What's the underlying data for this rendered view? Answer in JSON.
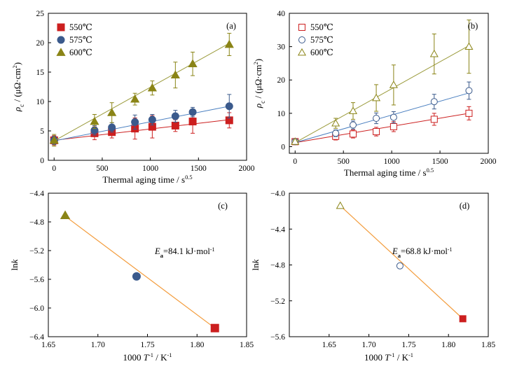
{
  "colors": {
    "c550": "#cc1f1f",
    "c575": "#3b5a8c",
    "c600": "#8a8416",
    "fit575": "#4a7fc0",
    "fit600": "#9a9a3a",
    "arrhenius": "#f39c3c"
  },
  "chart_data": [
    {
      "type": "scatter",
      "panel": "(a)",
      "ylabel_main": "ρ",
      "ylabel_sub": "c",
      "ylabel_unit": " / (μΩ·cm",
      "ylabel_close": ")",
      "xlabel_main": "Thermal aging time / s",
      "xlabel_sup": "0.5",
      "xlim": [
        -60,
        2000
      ],
      "ylim": [
        0,
        25
      ],
      "xticks": [
        0,
        500,
        1000,
        1500,
        2000
      ],
      "yticks": [
        0,
        5,
        10,
        15,
        20,
        25
      ],
      "legend": "top-left",
      "grid": false,
      "marker_fill": "filled",
      "series": [
        {
          "name": "550℃",
          "marker": "square",
          "color": "#cc1f1f",
          "x": [
            0,
            420,
            600,
            840,
            1020,
            1260,
            1440,
            1820
          ],
          "y": [
            3.4,
            4.6,
            4.8,
            5.4,
            5.7,
            5.9,
            6.6,
            6.8
          ],
          "err": [
            0.8,
            1.1,
            1.0,
            1.8,
            1.9,
            1.0,
            2.0,
            1.3
          ],
          "fit": [
            3.4,
            6.9
          ]
        },
        {
          "name": "575℃",
          "marker": "circle",
          "color": "#3b5a8c",
          "x": [
            0,
            420,
            600,
            840,
            1020,
            1260,
            1440,
            1820
          ],
          "y": [
            3.4,
            5.1,
            5.6,
            6.5,
            6.9,
            7.5,
            8.2,
            9.2
          ],
          "err": [
            0.7,
            0.8,
            0.8,
            1.2,
            0.9,
            1.0,
            0.8,
            2.0
          ],
          "fit": [
            3.3,
            9.2
          ]
        },
        {
          "name": "600℃",
          "marker": "triangle",
          "color": "#8a8416",
          "x": [
            0,
            420,
            600,
            840,
            1020,
            1260,
            1440,
            1820
          ],
          "y": [
            3.4,
            6.6,
            8.1,
            10.4,
            12.3,
            14.5,
            16.4,
            19.7
          ],
          "err": [
            1.0,
            1.2,
            1.7,
            1.0,
            1.2,
            2.2,
            2.0,
            1.9
          ],
          "fit": [
            3.3,
            19.9
          ]
        }
      ]
    },
    {
      "type": "scatter",
      "panel": "(b)",
      "ylabel_main": "ρ",
      "ylabel_sub": "c",
      "ylabel_unit": " / (μΩ·cm",
      "ylabel_close": ")",
      "xlabel_main": "Thermal aging time / s",
      "xlabel_sup": "0.5",
      "xlim": [
        -60,
        2000
      ],
      "ylim": [
        -2,
        40
      ],
      "xticks": [
        0,
        500,
        1000,
        1500,
        2000
      ],
      "yticks": [
        0,
        10,
        20,
        30,
        40
      ],
      "legend": "top-left",
      "grid": false,
      "marker_fill": "open",
      "series": [
        {
          "name": "550℃",
          "marker": "square",
          "color": "#cc1f1f",
          "x": [
            0,
            420,
            600,
            840,
            1020,
            1440,
            1800
          ],
          "y": [
            1.5,
            3.1,
            3.8,
            4.5,
            6.0,
            8.2,
            10.0
          ],
          "err": [
            0.5,
            1.1,
            1.2,
            1.3,
            1.5,
            1.8,
            2.0
          ],
          "fit": [
            1.2,
            10.0
          ]
        },
        {
          "name": "575℃",
          "marker": "circle",
          "color": "#3b5a8c",
          "x": [
            0,
            420,
            600,
            840,
            1020,
            1440,
            1800
          ],
          "y": [
            1.5,
            4.0,
            6.5,
            8.5,
            8.8,
            13.5,
            16.8
          ],
          "err": [
            0.5,
            1.0,
            1.2,
            1.6,
            1.7,
            2.2,
            2.6
          ],
          "fit": [
            1.2,
            16.1
          ]
        },
        {
          "name": "600℃",
          "marker": "triangle",
          "color": "#8a8416",
          "x": [
            0,
            420,
            600,
            840,
            1020,
            1440,
            1800
          ],
          "y": [
            1.5,
            7.0,
            10.7,
            14.6,
            18.5,
            27.8,
            30.0
          ],
          "err": [
            0.5,
            1.5,
            2.5,
            4.0,
            6.0,
            6.0,
            8.0
          ],
          "fit": [
            1.2,
            30.3
          ]
        }
      ]
    },
    {
      "type": "scatter",
      "panel": "(c)",
      "ylabel_main": "ln",
      "ylabel_italic": "k",
      "xlabel_pre": "1000 ",
      "xlabel_T": "T",
      "xlabel_sup": "-1",
      "xlabel_post": " / K",
      "xlabel_sup2": "-1",
      "annot_E": "E",
      "annot_a": "a",
      "annot_value": "=84.1 kJ·mol",
      "annot_sup": "-1",
      "xlim": [
        1.65,
        1.85
      ],
      "ylim": [
        -6.4,
        -4.4
      ],
      "xticks": [
        1.65,
        1.7,
        1.75,
        1.8,
        1.85
      ],
      "yticks": [
        -6.4,
        -6.0,
        -5.6,
        -5.2,
        -4.8,
        -4.4
      ],
      "grid": false,
      "marker_fill": "filled",
      "points": [
        {
          "x": 1.667,
          "y": -4.71,
          "marker": "triangle",
          "color": "#8a8416"
        },
        {
          "x": 1.739,
          "y": -5.56,
          "marker": "circle",
          "color": "#3b5a8c"
        },
        {
          "x": 1.818,
          "y": -6.28,
          "marker": "square",
          "color": "#cc1f1f"
        }
      ],
      "fit_x": [
        1.667,
        1.818
      ],
      "fit_y": [
        -4.72,
        -6.28
      ]
    },
    {
      "type": "scatter",
      "panel": "(d)",
      "ylabel_main": "ln",
      "ylabel_italic": "k",
      "xlabel_pre": "1000 ",
      "xlabel_T": "T",
      "xlabel_sup": "-1",
      "xlabel_post": " / K",
      "xlabel_sup2": "-1",
      "annot_E": "E",
      "annot_a": "a",
      "annot_value": "=68.8 kJ·mol",
      "annot_sup": "-1",
      "xlim": [
        1.6,
        1.85
      ],
      "ylim": [
        -5.6,
        -4.0
      ],
      "xticks": [
        1.65,
        1.7,
        1.75,
        1.8,
        1.85
      ],
      "yticks": [
        -5.6,
        -5.2,
        -4.8,
        -4.4,
        -4.0
      ],
      "grid": false,
      "marker_fill": "open",
      "points": [
        {
          "x": 1.664,
          "y": -4.14,
          "marker": "triangle",
          "color": "#8a8416"
        },
        {
          "x": 1.739,
          "y": -4.81,
          "marker": "circle",
          "color": "#3b5a8c"
        },
        {
          "x": 1.818,
          "y": -5.4,
          "marker": "square",
          "color": "#cc1f1f"
        }
      ],
      "fit_x": [
        1.664,
        1.818
      ],
      "fit_y": [
        -4.14,
        -5.4
      ]
    }
  ]
}
